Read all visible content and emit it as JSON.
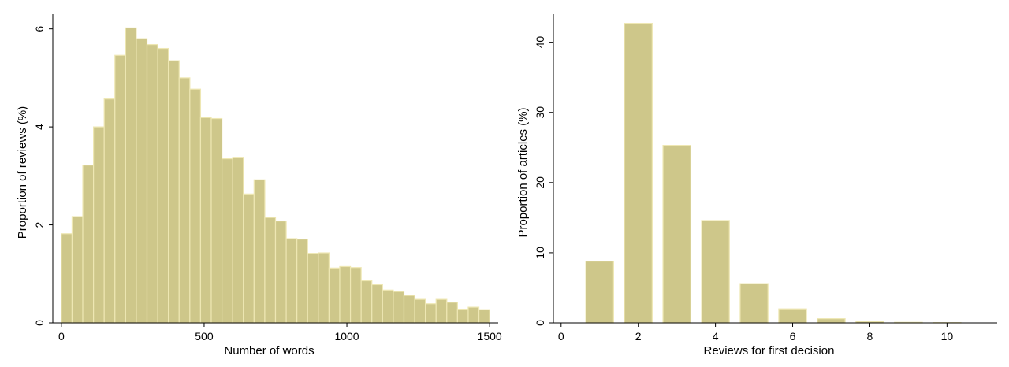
{
  "chart_data": [
    {
      "type": "bar",
      "xlabel": "Number of words",
      "ylabel": "Proportion of reviews (%)",
      "xlim": [
        -30,
        1530
      ],
      "ylim": [
        0,
        6.3
      ],
      "xticks": [
        0,
        500,
        1000,
        1500
      ],
      "yticks": [
        0,
        2,
        4,
        6
      ],
      "bin_width": 37.5,
      "bin_starts": [
        0,
        37.5,
        75,
        112.5,
        150,
        187.5,
        225,
        262.5,
        300,
        337.5,
        375,
        412.5,
        450,
        487.5,
        525,
        562.5,
        600,
        637.5,
        675,
        712.5,
        750,
        787.5,
        825,
        862.5,
        900,
        937.5,
        975,
        1012.5,
        1050,
        1087.5,
        1125,
        1162.5,
        1200,
        1237.5,
        1275,
        1312.5,
        1350,
        1387.5,
        1425,
        1462.5
      ],
      "values": [
        1.82,
        2.17,
        3.22,
        4.0,
        4.57,
        5.46,
        6.02,
        5.8,
        5.68,
        5.6,
        5.35,
        5.0,
        4.77,
        4.19,
        4.17,
        3.35,
        3.38,
        2.63,
        2.92,
        2.15,
        2.08,
        1.72,
        1.71,
        1.42,
        1.43,
        1.12,
        1.15,
        1.13,
        0.86,
        0.78,
        0.67,
        0.64,
        0.56,
        0.48,
        0.39,
        0.48,
        0.42,
        0.28,
        0.32,
        0.27
      ],
      "grid": false,
      "colors": {
        "bar_fill": "#cec78a",
        "bar_stroke": "#eee7b3"
      }
    },
    {
      "type": "bar",
      "xlabel": "Reviews for first decision",
      "ylabel": "Proportion of articles (%)",
      "xlim": [
        -0.2,
        11.3
      ],
      "ylim": [
        0,
        44
      ],
      "xticks": [
        0,
        2,
        4,
        6,
        8,
        10
      ],
      "yticks": [
        0,
        10,
        20,
        30,
        40
      ],
      "bar_width": 0.72,
      "x": [
        1,
        2,
        3,
        4,
        5,
        6,
        7,
        8,
        9,
        10
      ],
      "values": [
        8.8,
        42.7,
        25.3,
        14.6,
        5.6,
        2.0,
        0.6,
        0.2,
        0.08,
        0.04
      ],
      "grid": false,
      "colors": {
        "bar_fill": "#cec78a",
        "bar_stroke": "#eee7b3"
      }
    }
  ]
}
